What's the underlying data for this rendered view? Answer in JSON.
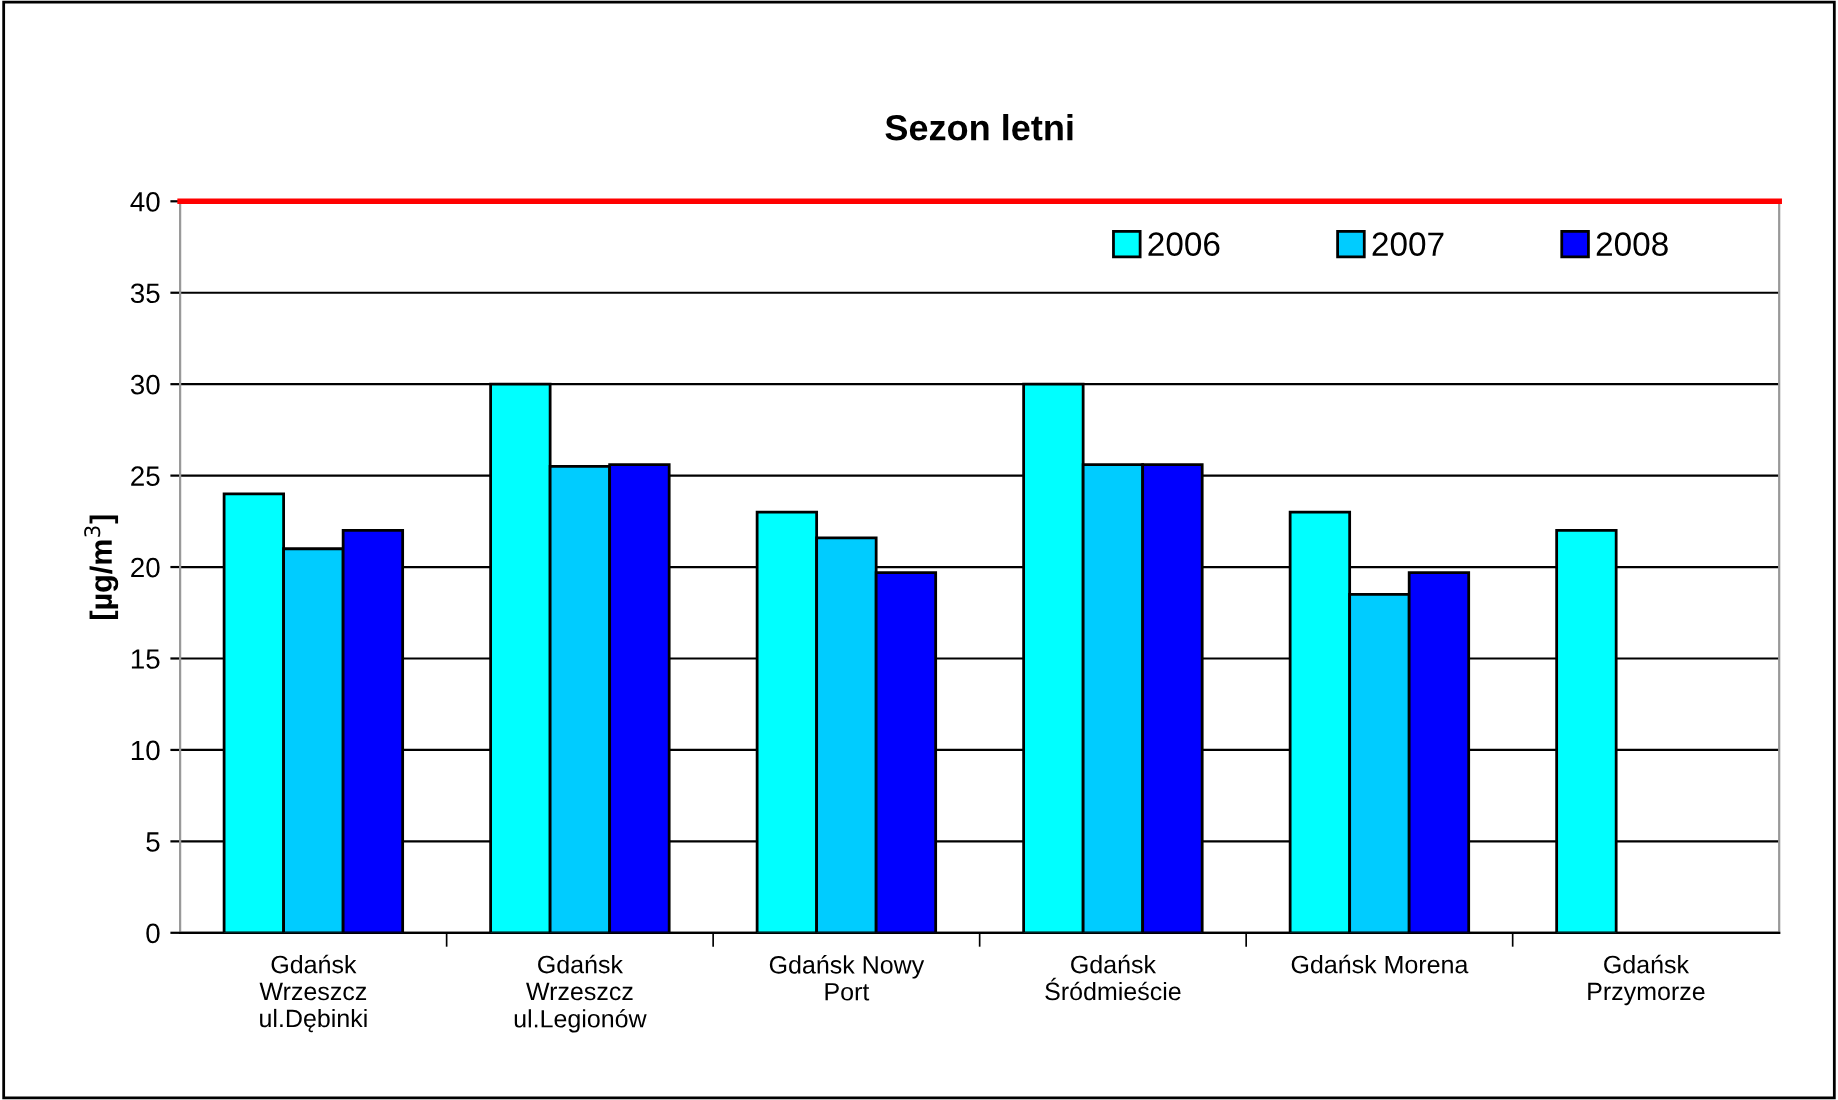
{
  "chart_data": {
    "type": "bar",
    "title": "Sezon letni",
    "ylabel": "[µg/m$^{3}$]",
    "categories": [
      "Gdańsk\nWrzeszcz\nul.Dębinki",
      "Gdańsk\nWrzeszcz\nul.Legionów",
      "Gdańsk Nowy\nPort",
      "Gdańsk\nŚródmieście",
      "Gdańsk Morena",
      "Gdańsk\nPrzymorze"
    ],
    "series": [
      {
        "name": "2006",
        "color": "#00ffff",
        "values": [
          24,
          30,
          23,
          30,
          23,
          22
        ]
      },
      {
        "name": "2007",
        "color": "#00ccff",
        "values": [
          21,
          25.5,
          21.6,
          25.6,
          18.5,
          null
        ]
      },
      {
        "name": "2008",
        "color": "#0000ff",
        "values": [
          22,
          25.6,
          19.7,
          25.6,
          19.7,
          null
        ]
      }
    ],
    "ylim": [
      0,
      40
    ],
    "yticks": [
      0,
      5,
      10,
      15,
      20,
      25,
      30,
      35,
      40
    ],
    "grid": "y",
    "legend": "top right",
    "ref_lines": [
      {
        "axis": "y",
        "value": 40,
        "label": null,
        "color": "#ff0000"
      }
    ]
  }
}
